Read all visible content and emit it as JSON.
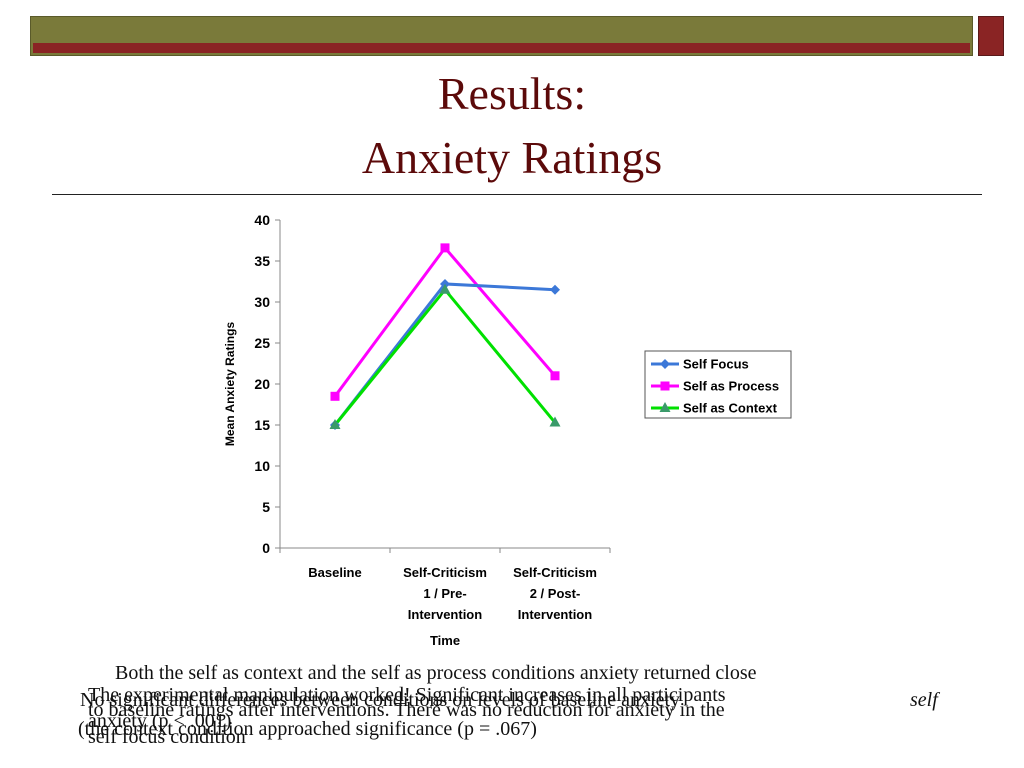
{
  "slide": {
    "title_line1": "Results:",
    "title_line2": "Anxiety Ratings"
  },
  "captions": {
    "para1_line1": "Both the self as context and the self as process conditions anxiety returned close",
    "para1_line2": "to baseline ratings after interventions. There was no reduction for anxiety in the",
    "para1_line3": "self focus condition",
    "para2_line1": "The experimental manipulation worked! Significant increases in all participants",
    "para2_line2": "anxiety (p < .001)",
    "para3_line1": "No significant differences between conditions on levels of baseline anxiety",
    "para3_line2": "(the context condition approached significance (p = .067)",
    "para3_word": "self"
  },
  "colors": {
    "self_focus": "#3c78d8",
    "self_process": "#ff00ff",
    "self_context_line": "#00e000",
    "self_context_marker": "#3a9a6a"
  },
  "chart_data": {
    "type": "line",
    "title": "",
    "xlabel": "Time",
    "ylabel": "Mean Anxiety Ratings",
    "ylim": [
      0,
      40
    ],
    "yticks": [
      0,
      5,
      10,
      15,
      20,
      25,
      30,
      35,
      40
    ],
    "categories": [
      [
        "Baseline"
      ],
      [
        "Self-Criticism",
        "1 / Pre-",
        "Intervention"
      ],
      [
        "Self-Criticism",
        "2 / Post-",
        "Intervention"
      ]
    ],
    "legend_position": "right",
    "series": [
      {
        "name": "Self Focus",
        "marker": "diamond",
        "values": [
          15,
          32.2,
          31.5
        ]
      },
      {
        "name": "Self as Process",
        "marker": "square",
        "values": [
          18.5,
          36.6,
          21
        ]
      },
      {
        "name": "Self as Context",
        "marker": "triangle",
        "values": [
          15,
          31.5,
          15.3
        ]
      }
    ]
  }
}
